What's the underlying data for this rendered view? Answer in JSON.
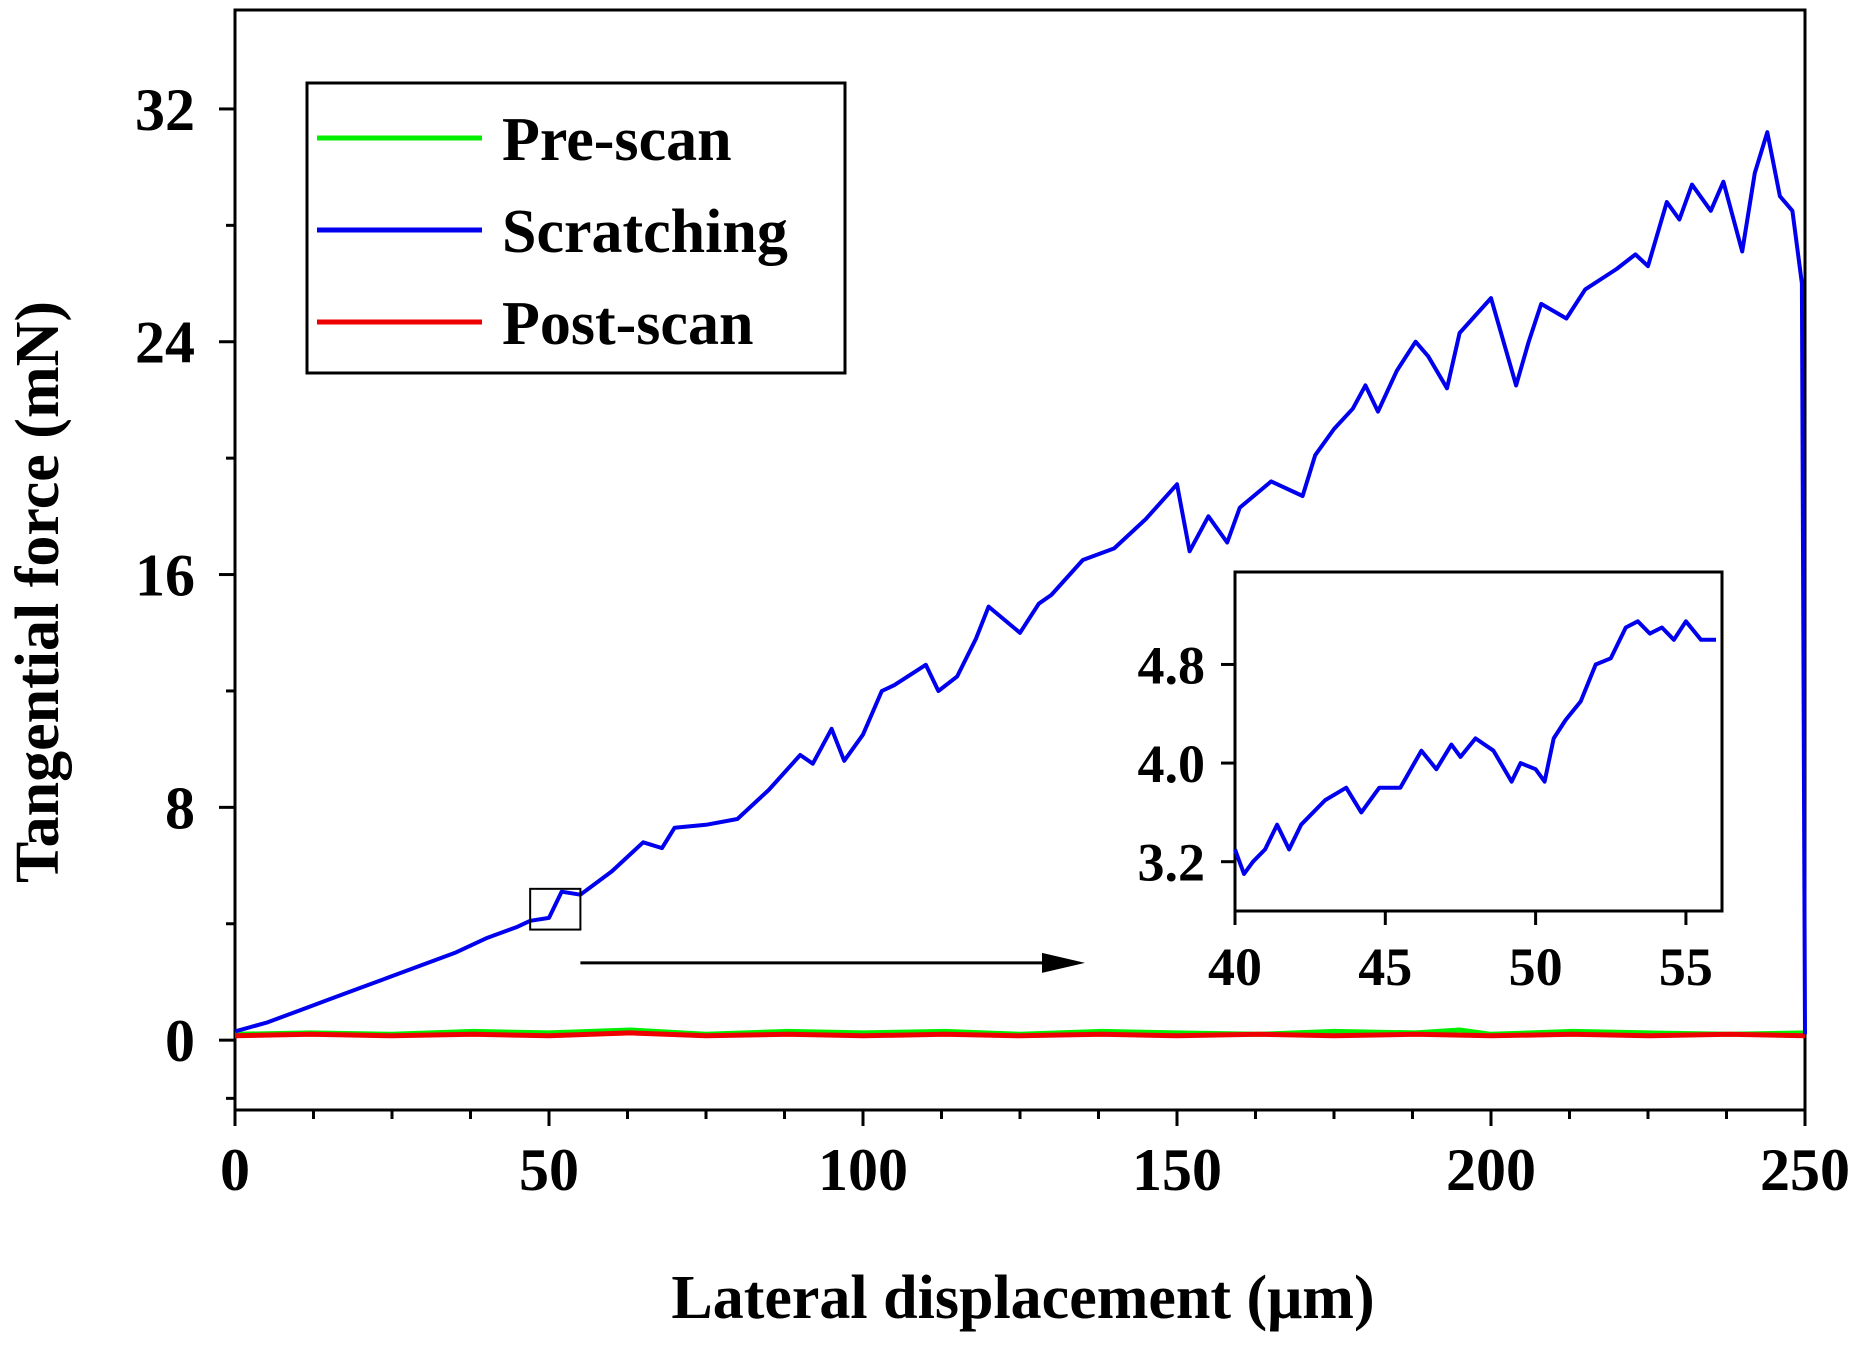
{
  "chart_data": {
    "type": "line",
    "xlabel": "Lateral displacement (μm)",
    "ylabel": "Tangential force (mN)",
    "xlim": [
      0,
      250
    ],
    "ylim": [
      -2.4,
      35.4
    ],
    "x_ticks": [
      0,
      50,
      100,
      150,
      200,
      250
    ],
    "y_ticks": [
      0,
      8,
      16,
      24,
      32
    ],
    "x_tick_labels": [
      "0",
      "50",
      "100",
      "150",
      "200",
      "250"
    ],
    "y_tick_labels": [
      "0",
      "8",
      "16",
      "24",
      "32"
    ],
    "grid": false,
    "legend_position": "top-left",
    "series": [
      {
        "name": "Pre-scan",
        "color": "#00ee00",
        "x": [
          0,
          12,
          25,
          38,
          50,
          63,
          75,
          88,
          100,
          113,
          125,
          138,
          150,
          163,
          175,
          188,
          195,
          200,
          213,
          225,
          238,
          250
        ],
        "y": [
          0.2,
          0.25,
          0.2,
          0.3,
          0.25,
          0.35,
          0.2,
          0.3,
          0.25,
          0.3,
          0.2,
          0.3,
          0.25,
          0.2,
          0.3,
          0.25,
          0.35,
          0.2,
          0.3,
          0.25,
          0.2,
          0.25
        ]
      },
      {
        "name": "Scratching",
        "color": "#0000ee",
        "x": [
          0,
          5,
          10,
          15,
          20,
          25,
          30,
          35,
          40,
          45,
          47,
          50,
          52,
          55,
          60,
          65,
          68,
          70,
          75,
          80,
          85,
          90,
          92,
          95,
          97,
          100,
          103,
          105,
          110,
          112,
          115,
          118,
          120,
          125,
          128,
          130,
          135,
          140,
          145,
          150,
          152,
          155,
          158,
          160,
          165,
          170,
          172,
          175,
          178,
          180,
          182,
          185,
          188,
          190,
          193,
          195,
          200,
          204,
          206,
          208,
          212,
          215,
          220,
          223,
          225,
          228,
          230,
          232,
          235,
          237,
          240,
          242,
          244,
          246,
          248,
          249.5,
          250
        ],
        "y": [
          0.3,
          0.6,
          1.0,
          1.4,
          1.8,
          2.2,
          2.6,
          3.0,
          3.5,
          3.9,
          4.1,
          4.2,
          5.1,
          5.0,
          5.8,
          6.8,
          6.6,
          7.3,
          7.4,
          7.6,
          8.6,
          9.8,
          9.5,
          10.7,
          9.6,
          10.5,
          12.0,
          12.2,
          12.9,
          12.0,
          12.5,
          13.8,
          14.9,
          14.0,
          15.0,
          15.3,
          16.5,
          16.9,
          17.9,
          19.1,
          16.8,
          18.0,
          17.1,
          18.3,
          19.2,
          18.7,
          20.1,
          21.0,
          21.7,
          22.5,
          21.6,
          23.0,
          24.0,
          23.5,
          22.4,
          24.3,
          25.5,
          22.5,
          24.0,
          25.3,
          24.8,
          25.8,
          26.5,
          27.0,
          26.6,
          28.8,
          28.2,
          29.4,
          28.5,
          29.5,
          27.1,
          29.8,
          31.2,
          29.0,
          28.5,
          26.0,
          0.2
        ]
      },
      {
        "name": "Post-scan",
        "color": "#ee0000",
        "x": [
          0,
          12,
          25,
          38,
          50,
          63,
          75,
          88,
          100,
          113,
          125,
          138,
          150,
          163,
          175,
          188,
          200,
          213,
          225,
          238,
          250
        ],
        "y": [
          0.15,
          0.2,
          0.15,
          0.2,
          0.15,
          0.25,
          0.15,
          0.2,
          0.15,
          0.2,
          0.15,
          0.2,
          0.15,
          0.2,
          0.15,
          0.2,
          0.15,
          0.2,
          0.15,
          0.2,
          0.15
        ]
      }
    ],
    "zoom_box": {
      "x_range": [
        47,
        55
      ],
      "y_range": [
        3.8,
        5.2
      ]
    },
    "inset": {
      "type": "line",
      "xlim": [
        40,
        56.2
      ],
      "ylim": [
        2.8,
        5.55
      ],
      "x_ticks": [
        40,
        45,
        50,
        55
      ],
      "y_ticks": [
        3.2,
        4.0,
        4.8
      ],
      "x_tick_labels": [
        "40",
        "45",
        "50",
        "55"
      ],
      "y_tick_labels": [
        "3.2",
        "4.0",
        "4.8"
      ],
      "series": [
        {
          "name": "Scratching",
          "color": "#0000ee",
          "x": [
            40,
            40.3,
            40.6,
            41,
            41.4,
            41.8,
            42.2,
            43,
            43.7,
            44.2,
            44.8,
            45.5,
            46.2,
            46.7,
            47.2,
            47.5,
            48,
            48.6,
            49.2,
            49.5,
            50,
            50.3,
            50.6,
            51,
            51.5,
            52,
            52.5,
            53,
            53.4,
            53.8,
            54.2,
            54.6,
            55,
            55.5,
            56
          ],
          "y": [
            3.3,
            3.1,
            3.2,
            3.3,
            3.5,
            3.3,
            3.5,
            3.7,
            3.8,
            3.6,
            3.8,
            3.8,
            4.1,
            3.95,
            4.15,
            4.05,
            4.2,
            4.1,
            3.85,
            4.0,
            3.95,
            3.85,
            4.2,
            4.35,
            4.5,
            4.8,
            4.85,
            5.1,
            5.15,
            5.05,
            5.1,
            5.0,
            5.15,
            5.0,
            5.0
          ]
        }
      ]
    },
    "legend": [
      {
        "name": "Pre-scan",
        "color": "#00ee00"
      },
      {
        "name": "Scratching",
        "color": "#0000ee"
      },
      {
        "name": "Post-scan",
        "color": "#ee0000"
      }
    ]
  }
}
